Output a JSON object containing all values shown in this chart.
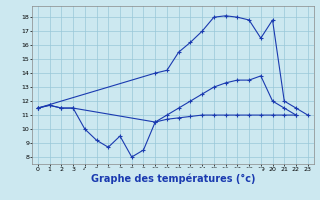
{
  "background_color": "#cce8f0",
  "grid_color": "#99c8d8",
  "line_color": "#1a3ab0",
  "xlabel": "Graphe des températures (°c)",
  "xlabel_fontsize": 7,
  "yticks": [
    8,
    9,
    10,
    11,
    12,
    13,
    14,
    15,
    16,
    17,
    18
  ],
  "xticks": [
    0,
    1,
    2,
    3,
    4,
    5,
    6,
    7,
    8,
    9,
    10,
    11,
    12,
    13,
    14,
    15,
    16,
    17,
    18,
    19,
    20,
    21,
    22,
    23
  ],
  "xlim": [
    -0.5,
    23.5
  ],
  "ylim": [
    7.5,
    18.8
  ],
  "series": [
    {
      "x": [
        0,
        1,
        2,
        3,
        4,
        5,
        6,
        7,
        8,
        9,
        10,
        11,
        12,
        13,
        14,
        15,
        16,
        17,
        18,
        19,
        20,
        21,
        22
      ],
      "y": [
        11.5,
        11.7,
        11.5,
        11.5,
        10.0,
        9.2,
        8.7,
        9.5,
        8.0,
        8.5,
        10.5,
        10.7,
        10.8,
        10.9,
        11.0,
        11.0,
        11.0,
        11.0,
        11.0,
        11.0,
        11.0,
        11.0,
        11.0
      ],
      "marker": "+",
      "markersize": 3,
      "linewidth": 0.8
    },
    {
      "x": [
        0,
        1,
        2,
        3,
        10,
        11,
        12,
        13,
        14,
        15,
        16,
        17,
        18,
        19,
        20,
        21,
        22
      ],
      "y": [
        11.5,
        11.7,
        11.5,
        11.5,
        10.5,
        11.0,
        11.5,
        12.0,
        12.5,
        13.0,
        13.3,
        13.5,
        13.5,
        13.8,
        12.0,
        11.5,
        11.0
      ],
      "marker": "+",
      "markersize": 3,
      "linewidth": 0.8
    },
    {
      "comment": "top curve: starts 0~11.5, rises from 10 steeply, peaks 15-16 at 18, drops to 19~16.5, falls sharply 20~17.8, 21~12, 22~11.5, 23~11",
      "x": [
        0,
        10,
        11,
        12,
        13,
        14,
        15,
        16,
        17,
        18,
        19,
        20,
        21,
        22,
        23
      ],
      "y": [
        11.5,
        14.0,
        14.2,
        15.5,
        16.2,
        17.0,
        18.0,
        18.1,
        18.0,
        17.8,
        16.5,
        17.8,
        12.0,
        11.5,
        11.0
      ],
      "marker": "+",
      "markersize": 3,
      "linewidth": 0.8
    }
  ]
}
